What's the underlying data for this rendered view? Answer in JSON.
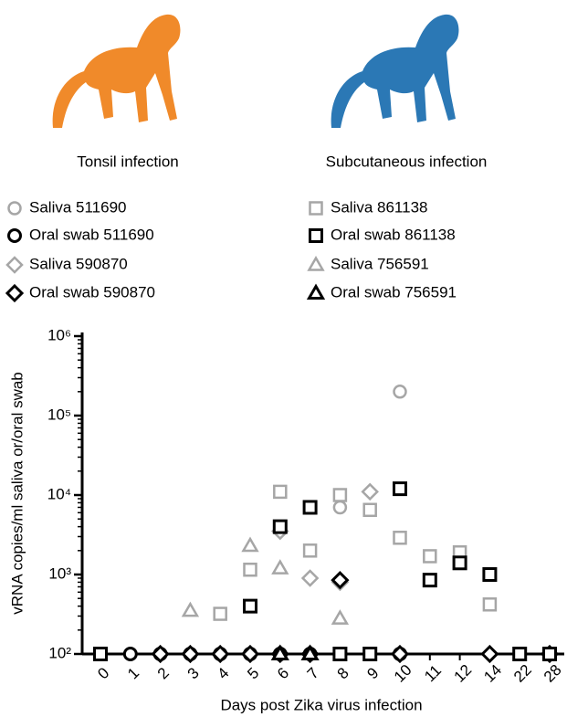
{
  "chart_data": {
    "type": "scatter",
    "x_label": "Days post Zika virus infection",
    "y_label": "vRNA copies/ml saliva or/oral swab",
    "categories": [
      "0",
      "1",
      "2",
      "3",
      "4",
      "5",
      "6",
      "7",
      "8",
      "9",
      "10",
      "11",
      "12",
      "14",
      "22",
      "28"
    ],
    "log_y": true,
    "ylim": [
      100,
      1000000
    ],
    "yticks": [
      {
        "value": 100,
        "label": "10²"
      },
      {
        "value": 1000,
        "label": "10³"
      },
      {
        "value": 10000,
        "label": "10⁴"
      },
      {
        "value": 100000,
        "label": "10⁵"
      },
      {
        "value": 1000000,
        "label": "10⁶"
      }
    ],
    "legend_groups": [
      {
        "name": "Tonsil infection",
        "color": "#f08a2a"
      },
      {
        "name": "Subcutaneous infection",
        "color": "#2b78b5"
      }
    ],
    "series": [
      {
        "name": "Saliva 511690",
        "marker": "circle",
        "color": "#a6a6a6",
        "values": [
          null,
          100,
          100,
          100,
          100,
          100,
          100,
          100,
          7000,
          null,
          200000,
          null,
          null,
          null,
          null,
          null
        ]
      },
      {
        "name": "Oral swab 511690",
        "marker": "circle",
        "color": "#000000",
        "values": [
          null,
          100,
          100,
          100,
          100,
          100,
          100,
          100,
          100,
          null,
          100,
          null,
          null,
          null,
          null,
          null
        ]
      },
      {
        "name": "Saliva 590870",
        "marker": "diamond",
        "color": "#a6a6a6",
        "values": [
          null,
          null,
          100,
          100,
          100,
          100,
          3500,
          900,
          800,
          11000,
          100,
          null,
          null,
          100,
          null,
          100
        ]
      },
      {
        "name": "Oral swab 590870",
        "marker": "diamond",
        "color": "#000000",
        "values": [
          null,
          null,
          100,
          100,
          100,
          100,
          100,
          100,
          850,
          null,
          100,
          null,
          null,
          100,
          null,
          100
        ]
      },
      {
        "name": "Saliva 861138",
        "marker": "square",
        "color": "#a6a6a6",
        "values": [
          100,
          null,
          null,
          null,
          320,
          1150,
          11000,
          2000,
          10000,
          6500,
          2900,
          1700,
          1900,
          420,
          100,
          100
        ]
      },
      {
        "name": "Oral swab 861138",
        "marker": "square",
        "color": "#000000",
        "values": [
          100,
          null,
          null,
          null,
          null,
          400,
          4000,
          7000,
          100,
          100,
          12000,
          850,
          1400,
          1000,
          100,
          100
        ]
      },
      {
        "name": "Saliva 756591",
        "marker": "triangle",
        "color": "#a6a6a6",
        "values": [
          null,
          null,
          null,
          350,
          null,
          2300,
          1200,
          null,
          280,
          null,
          null,
          null,
          null,
          null,
          null,
          null
        ]
      },
      {
        "name": "Oral swab 756591",
        "marker": "triangle",
        "color": "#000000",
        "values": [
          null,
          null,
          null,
          null,
          null,
          null,
          100,
          100,
          null,
          null,
          null,
          null,
          null,
          null,
          null,
          null
        ]
      }
    ]
  }
}
